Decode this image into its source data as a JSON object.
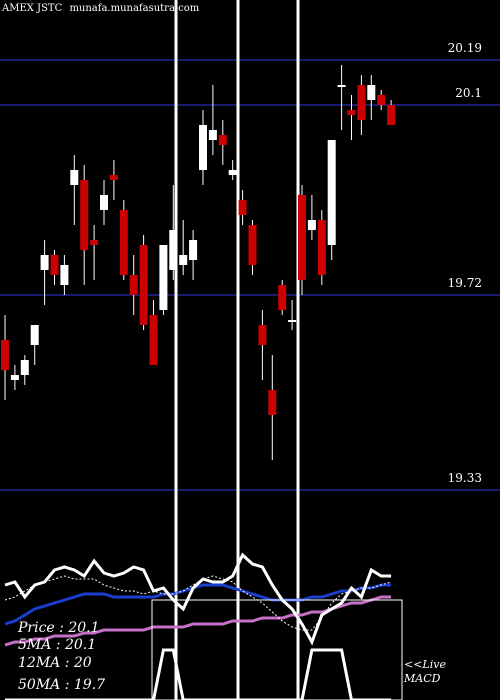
{
  "header": {
    "symbol_label": "AMEX JSTC",
    "site_label": "munafa.munafasutra.com"
  },
  "legend": {
    "price": "Price   : 20.1",
    "ma5": "5MA : 20.1",
    "ma12": "12MA : 20",
    "ma50": "50MA : 19.7"
  },
  "macd": {
    "label_line1": "<<Live",
    "label_line2": "MACD"
  },
  "colors": {
    "background": "#000000",
    "up": "#ffffff",
    "down": "#cc0000",
    "grid": "#1a1a6e",
    "price_line": "#ffffff",
    "ma5": "#ffffff",
    "ma12": "#1a3fd0",
    "ma50": "#c86fc8"
  },
  "chart_data": {
    "type": "candlestick",
    "y_axis": {
      "ticks": [
        20.19,
        20.1,
        19.72,
        19.33
      ],
      "min": 19.33,
      "max": 20.19
    },
    "candles": [
      {
        "o": 19.63,
        "h": 19.68,
        "l": 19.51,
        "c": 19.57
      },
      {
        "o": 19.55,
        "h": 19.58,
        "l": 19.53,
        "c": 19.56
      },
      {
        "o": 19.56,
        "h": 19.6,
        "l": 19.54,
        "c": 19.59
      },
      {
        "o": 19.62,
        "h": 19.66,
        "l": 19.58,
        "c": 19.66
      },
      {
        "o": 19.77,
        "h": 19.83,
        "l": 19.7,
        "c": 19.8
      },
      {
        "o": 19.8,
        "h": 19.81,
        "l": 19.74,
        "c": 19.76
      },
      {
        "o": 19.74,
        "h": 19.8,
        "l": 19.72,
        "c": 19.78
      },
      {
        "o": 19.94,
        "h": 20.0,
        "l": 19.86,
        "c": 19.97
      },
      {
        "o": 19.95,
        "h": 19.98,
        "l": 19.74,
        "c": 19.81
      },
      {
        "o": 19.83,
        "h": 19.86,
        "l": 19.75,
        "c": 19.82
      },
      {
        "o": 19.89,
        "h": 19.95,
        "l": 19.86,
        "c": 19.92
      },
      {
        "o": 19.96,
        "h": 19.99,
        "l": 19.91,
        "c": 19.95
      },
      {
        "o": 19.89,
        "h": 19.91,
        "l": 19.75,
        "c": 19.76
      },
      {
        "o": 19.76,
        "h": 19.8,
        "l": 19.68,
        "c": 19.72
      },
      {
        "o": 19.82,
        "h": 19.84,
        "l": 19.65,
        "c": 19.66
      },
      {
        "o": 19.68,
        "h": 19.71,
        "l": 19.58,
        "c": 19.58
      },
      {
        "o": 19.69,
        "h": 19.82,
        "l": 19.68,
        "c": 19.82
      },
      {
        "o": 19.77,
        "h": 19.94,
        "l": 19.75,
        "c": 19.85
      },
      {
        "o": 19.78,
        "h": 19.87,
        "l": 19.76,
        "c": 19.8
      },
      {
        "o": 19.79,
        "h": 19.85,
        "l": 19.75,
        "c": 19.83
      },
      {
        "o": 19.97,
        "h": 20.09,
        "l": 19.94,
        "c": 20.06
      },
      {
        "o": 20.03,
        "h": 20.14,
        "l": 20.0,
        "c": 20.05
      },
      {
        "o": 20.04,
        "h": 20.07,
        "l": 19.98,
        "c": 20.02
      },
      {
        "o": 19.96,
        "h": 19.99,
        "l": 19.95,
        "c": 19.97
      },
      {
        "o": 19.91,
        "h": 19.93,
        "l": 19.86,
        "c": 19.88
      },
      {
        "o": 19.86,
        "h": 19.87,
        "l": 19.76,
        "c": 19.78
      },
      {
        "o": 19.66,
        "h": 19.69,
        "l": 19.55,
        "c": 19.62
      },
      {
        "o": 19.53,
        "h": 19.6,
        "l": 19.39,
        "c": 19.48
      },
      {
        "o": 19.74,
        "h": 19.75,
        "l": 19.68,
        "c": 19.69
      },
      {
        "o": 19.67,
        "h": 19.71,
        "l": 19.65,
        "c": 19.67
      },
      {
        "o": 19.92,
        "h": 19.94,
        "l": 19.72,
        "c": 19.75
      },
      {
        "o": 19.85,
        "h": 19.92,
        "l": 19.83,
        "c": 19.87
      },
      {
        "o": 19.87,
        "h": 19.89,
        "l": 19.74,
        "c": 19.76
      },
      {
        "o": 19.82,
        "h": 20.03,
        "l": 19.79,
        "c": 20.03
      },
      {
        "o": 20.14,
        "h": 20.18,
        "l": 20.05,
        "c": 20.14
      },
      {
        "o": 20.09,
        "h": 20.12,
        "l": 20.03,
        "c": 20.08
      },
      {
        "o": 20.14,
        "h": 20.16,
        "l": 20.04,
        "c": 20.07
      },
      {
        "o": 20.11,
        "h": 20.16,
        "l": 20.07,
        "c": 20.14
      },
      {
        "o": 20.12,
        "h": 20.13,
        "l": 20.09,
        "c": 20.1
      },
      {
        "o": 20.1,
        "h": 20.11,
        "l": 20.06,
        "c": 20.06
      }
    ],
    "price_line": [
      19.31,
      19.32,
      19.27,
      19.31,
      19.32,
      19.36,
      19.37,
      19.36,
      19.34,
      19.39,
      19.35,
      19.34,
      19.35,
      19.37,
      19.36,
      19.29,
      19.3,
      19.26,
      19.23,
      19.3,
      19.33,
      19.32,
      19.32,
      19.34,
      19.41,
      19.38,
      19.37,
      19.31,
      19.26,
      19.23,
      19.18,
      19.12,
      19.21,
      19.23,
      19.25,
      19.3,
      19.27,
      19.36,
      19.34,
      19.34
    ],
    "ma5_line": [
      19.26,
      19.27,
      19.29,
      19.31,
      19.32,
      19.33,
      19.34,
      19.33,
      19.33,
      19.33,
      19.31,
      19.3,
      19.29,
      19.29,
      19.28,
      19.29,
      19.28,
      19.28,
      19.29,
      19.31,
      19.33,
      19.34,
      19.33,
      19.32,
      19.29,
      19.27,
      19.25,
      19.22,
      19.19,
      19.17,
      19.16,
      19.16,
      19.2,
      19.25,
      19.28,
      19.29,
      19.3,
      19.3,
      19.31,
      19.32
    ],
    "ma12_line": [
      19.18,
      19.19,
      19.21,
      19.23,
      19.24,
      19.25,
      19.26,
      19.27,
      19.28,
      19.28,
      19.28,
      19.27,
      19.27,
      19.27,
      19.27,
      19.27,
      19.28,
      19.28,
      19.29,
      19.3,
      19.31,
      19.31,
      19.31,
      19.3,
      19.29,
      19.28,
      19.27,
      19.26,
      19.26,
      19.26,
      19.26,
      19.27,
      19.27,
      19.28,
      19.29,
      19.29,
      19.3,
      19.3,
      19.31,
      19.31
    ],
    "ma50_line": [
      19.11,
      19.12,
      19.12,
      19.13,
      19.13,
      19.14,
      19.14,
      19.14,
      19.15,
      19.15,
      19.16,
      19.16,
      19.16,
      19.16,
      19.16,
      19.17,
      19.17,
      19.17,
      19.17,
      19.18,
      19.18,
      19.18,
      19.18,
      19.19,
      19.19,
      19.19,
      19.2,
      19.2,
      19.2,
      19.21,
      19.21,
      19.22,
      19.22,
      19.23,
      19.24,
      19.25,
      19.25,
      19.26,
      19.27,
      19.27
    ],
    "macd_bars": [
      0,
      0,
      0,
      0,
      0,
      0,
      0,
      0,
      0,
      0,
      0,
      0,
      0,
      0,
      0,
      0,
      1,
      1,
      0,
      0,
      0,
      0,
      0,
      0,
      0,
      0,
      0,
      0,
      0,
      0,
      0,
      1,
      1,
      1,
      1,
      0,
      0,
      0,
      0,
      0
    ]
  }
}
